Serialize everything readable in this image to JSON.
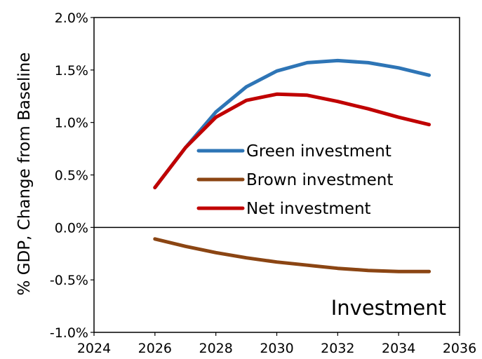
{
  "chart_data": {
    "type": "line",
    "title": "",
    "xlabel": "",
    "ylabel": "% GDP, Change from Baseline",
    "annotation": "Investment",
    "xlim": [
      2024,
      2036
    ],
    "ylim": [
      -1.0,
      2.0
    ],
    "x_ticks": [
      2024,
      2026,
      2028,
      2030,
      2032,
      2034,
      2036
    ],
    "y_ticks": [
      {
        "value": -1.0,
        "label": "-1.0%"
      },
      {
        "value": -0.5,
        "label": "-0.5%"
      },
      {
        "value": 0.0,
        "label": "0.0%"
      },
      {
        "value": 0.5,
        "label": "0.5%"
      },
      {
        "value": 1.0,
        "label": "1.0%"
      },
      {
        "value": 1.5,
        "label": "1.5%"
      },
      {
        "value": 2.0,
        "label": "2.0%"
      }
    ],
    "grid": false,
    "legend_position": "center",
    "x": [
      2026,
      2027,
      2028,
      2029,
      2030,
      2031,
      2032,
      2033,
      2034,
      2035
    ],
    "series": [
      {
        "name": "Green investment",
        "color": "#2E75B6",
        "values": [
          0.38,
          0.76,
          1.1,
          1.34,
          1.49,
          1.57,
          1.59,
          1.57,
          1.52,
          1.45
        ]
      },
      {
        "name": "Brown investment",
        "color": "#8B4513",
        "values": [
          -0.11,
          -0.18,
          -0.24,
          -0.29,
          -0.33,
          -0.36,
          -0.39,
          -0.41,
          -0.42,
          -0.42
        ]
      },
      {
        "name": "Net investment",
        "color": "#C00000",
        "values": [
          0.38,
          0.76,
          1.05,
          1.21,
          1.27,
          1.26,
          1.2,
          1.13,
          1.05,
          0.98
        ]
      }
    ]
  }
}
